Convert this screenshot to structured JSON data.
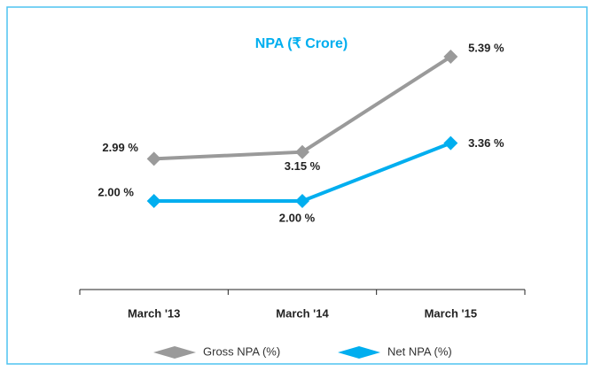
{
  "chart_data": {
    "type": "line",
    "title": "NPA (₹ Crore)",
    "categories": [
      "March '13",
      "March '14",
      "March '15"
    ],
    "series": [
      {
        "name": "Gross NPA (%)",
        "color": "#9a9a9a",
        "values": [
          2.99,
          3.15,
          5.39
        ],
        "value_labels": [
          "2.99 %",
          "3.15 %",
          "5.39 %"
        ]
      },
      {
        "name": "Net NPA (%)",
        "color": "#00aeef",
        "values": [
          2.0,
          2.0,
          3.36
        ],
        "value_labels": [
          "2.00 %",
          "2.00 %",
          "3.36 %"
        ]
      }
    ]
  }
}
